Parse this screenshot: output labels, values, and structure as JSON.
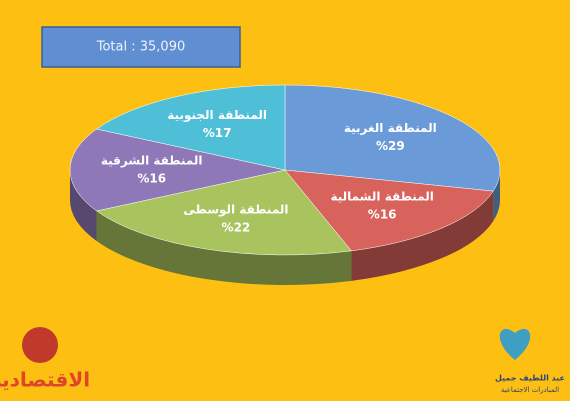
{
  "chart_data": {
    "type": "pie",
    "total_label": "Total : 35,090",
    "categories": [
      "المنطقة الغربية",
      "المنطقة الشمالية",
      "المنطقة الوسطى",
      "المنطقة الشرقية",
      "المنطقة الجنوبية"
    ],
    "values": [
      29,
      16,
      22,
      16,
      17
    ],
    "value_labels": [
      "%29",
      "%16",
      "%22",
      "%16",
      "%17"
    ],
    "colors": [
      "#6a9bd8",
      "#d8625c",
      "#a9c45e",
      "#8f78b8",
      "#4fbfd8"
    ]
  },
  "logos": {
    "left": "الاقتصادية",
    "right_line1": "عبد اللطيف جميل",
    "right_line2": "المبادرات الاجتماعية"
  }
}
